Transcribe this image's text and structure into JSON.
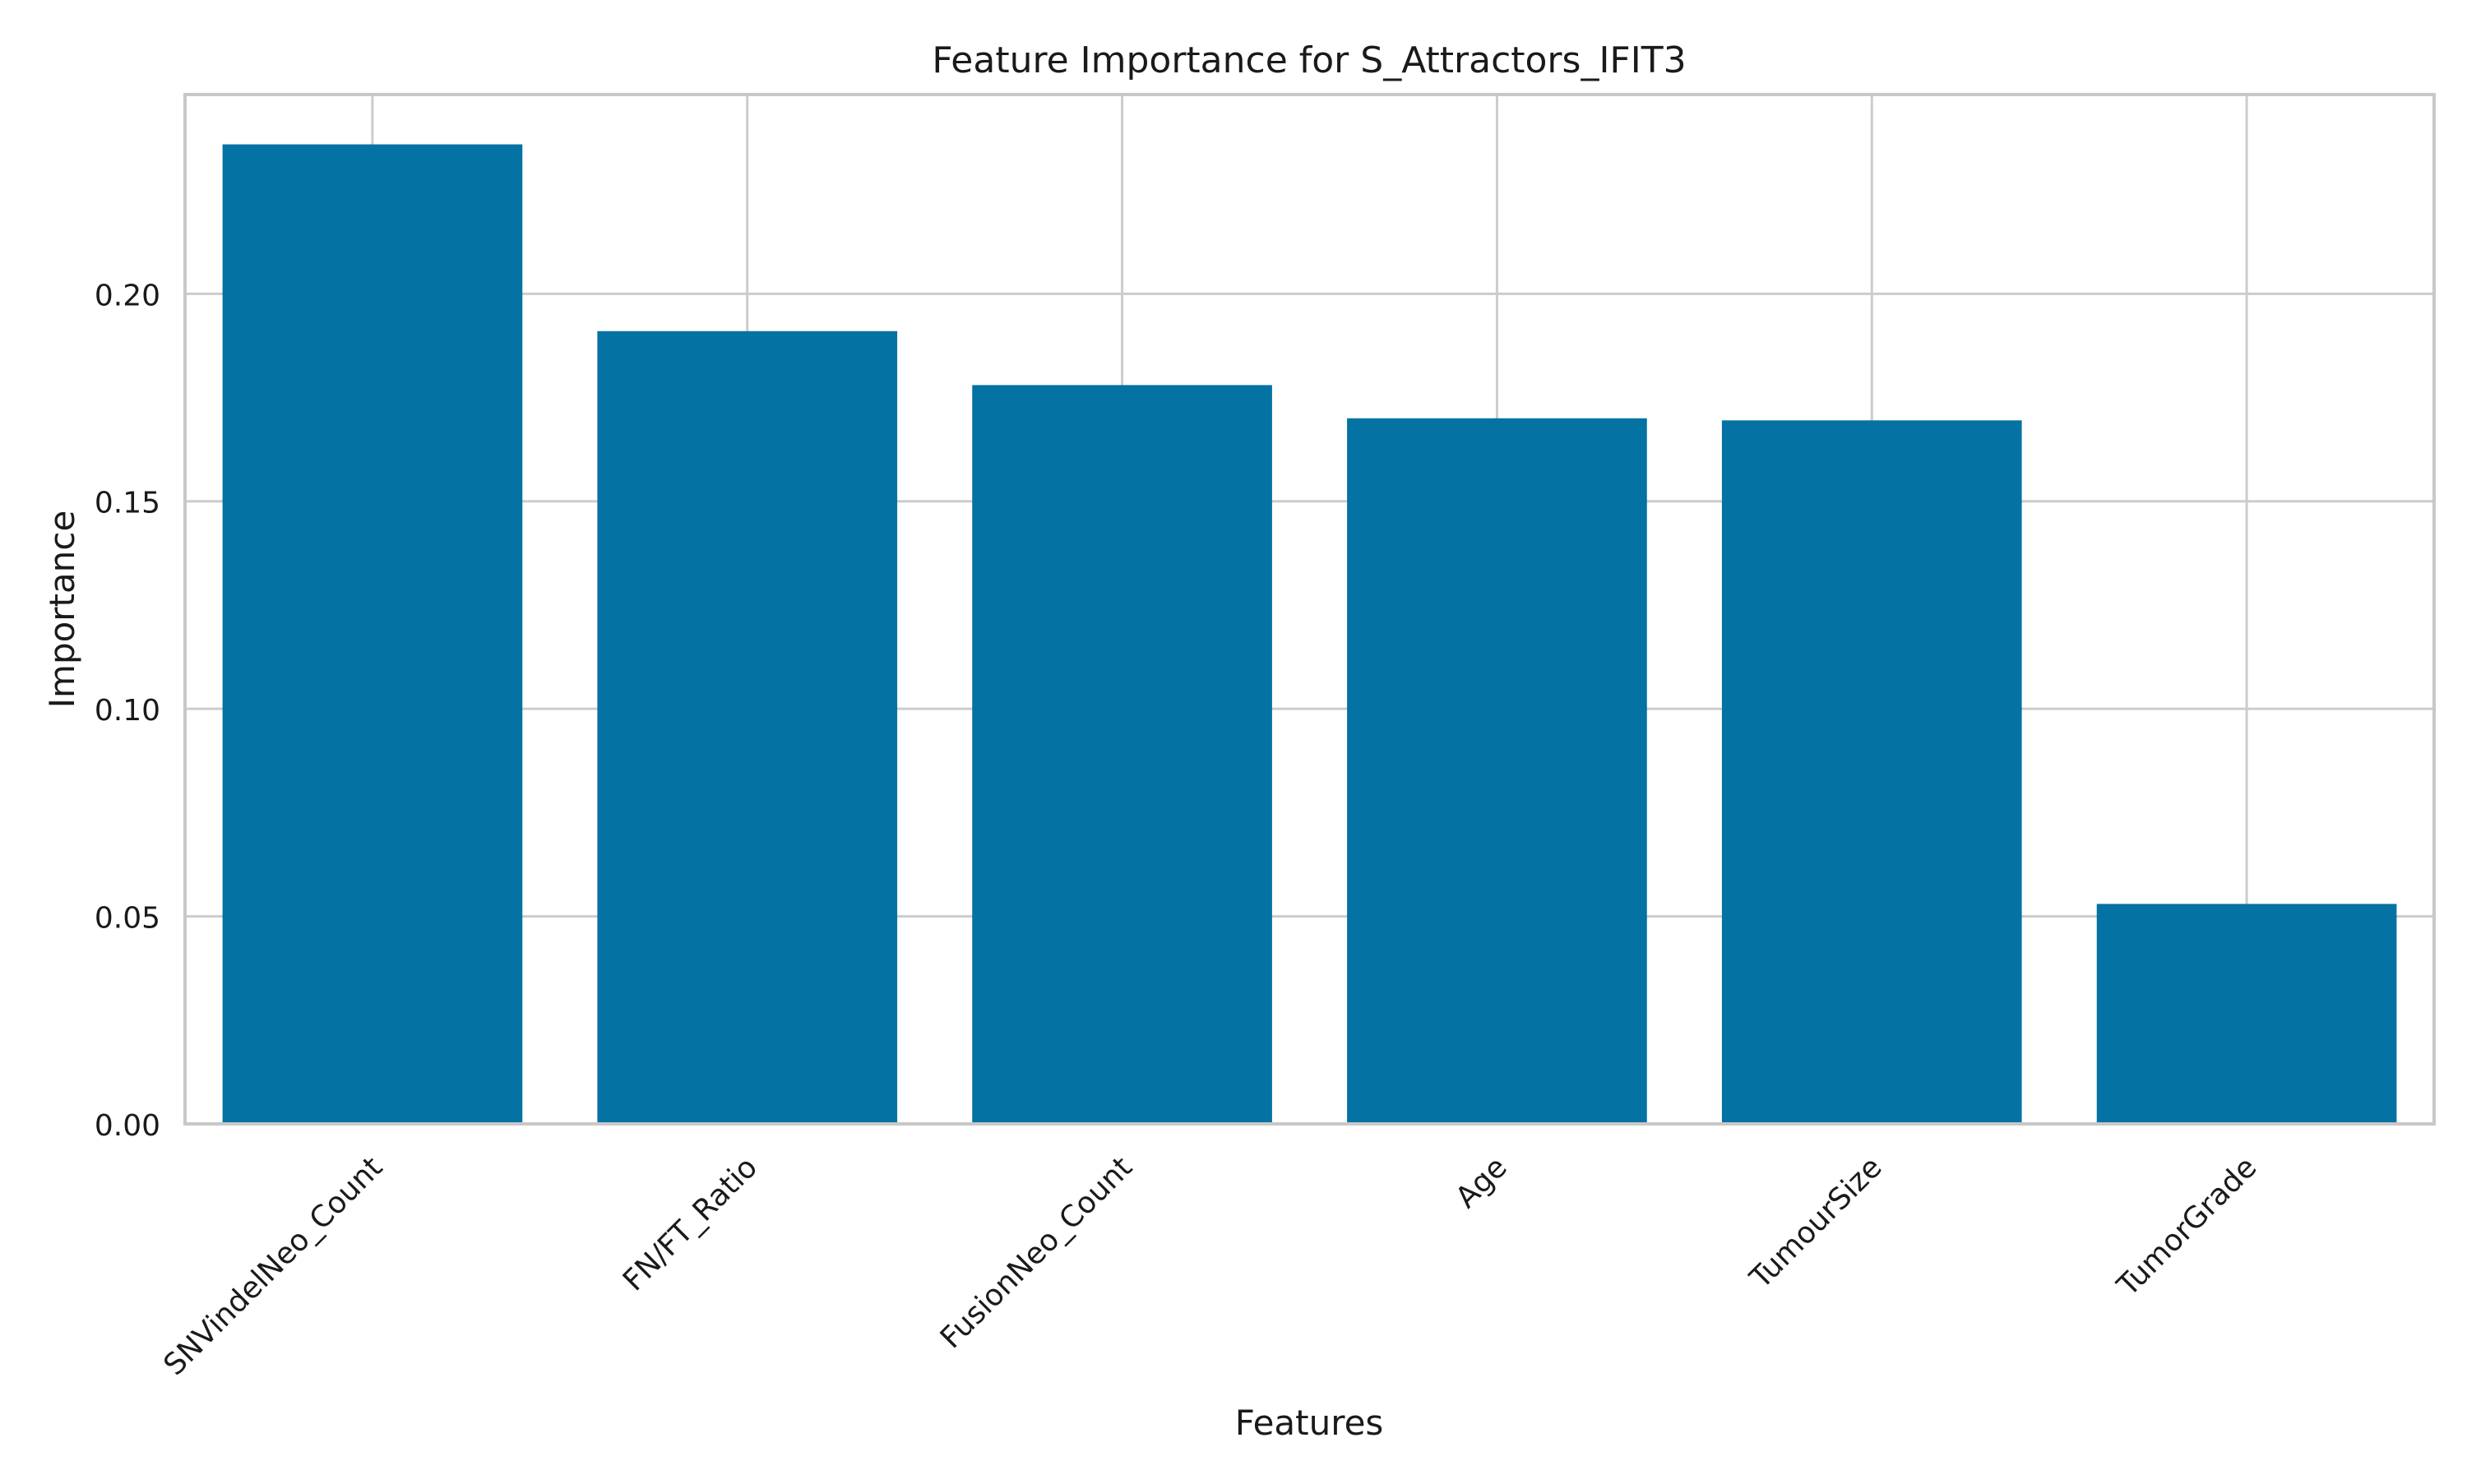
{
  "chart_data": {
    "type": "bar",
    "title": "Feature Importance for S_Attractors_IFIT3",
    "xlabel": "Features",
    "ylabel": "Importance",
    "categories": [
      "SNVindelNeo_Count",
      "FN/FT_Ratio",
      "FusionNeo_Count",
      "Age",
      "TumourSize",
      "TumorGrade"
    ],
    "values": [
      0.236,
      0.191,
      0.178,
      0.17,
      0.1695,
      0.053
    ],
    "ylim": [
      0,
      0.248
    ],
    "yticks": [
      0.0,
      0.05,
      0.1,
      0.15,
      0.2
    ],
    "ytick_labels": [
      "0.00",
      "0.05",
      "0.10",
      "0.15",
      "0.20"
    ],
    "grid": true,
    "bar_color": "#0472a2",
    "grid_color": "#cccccc",
    "spine_color": "#c8c8c8"
  }
}
